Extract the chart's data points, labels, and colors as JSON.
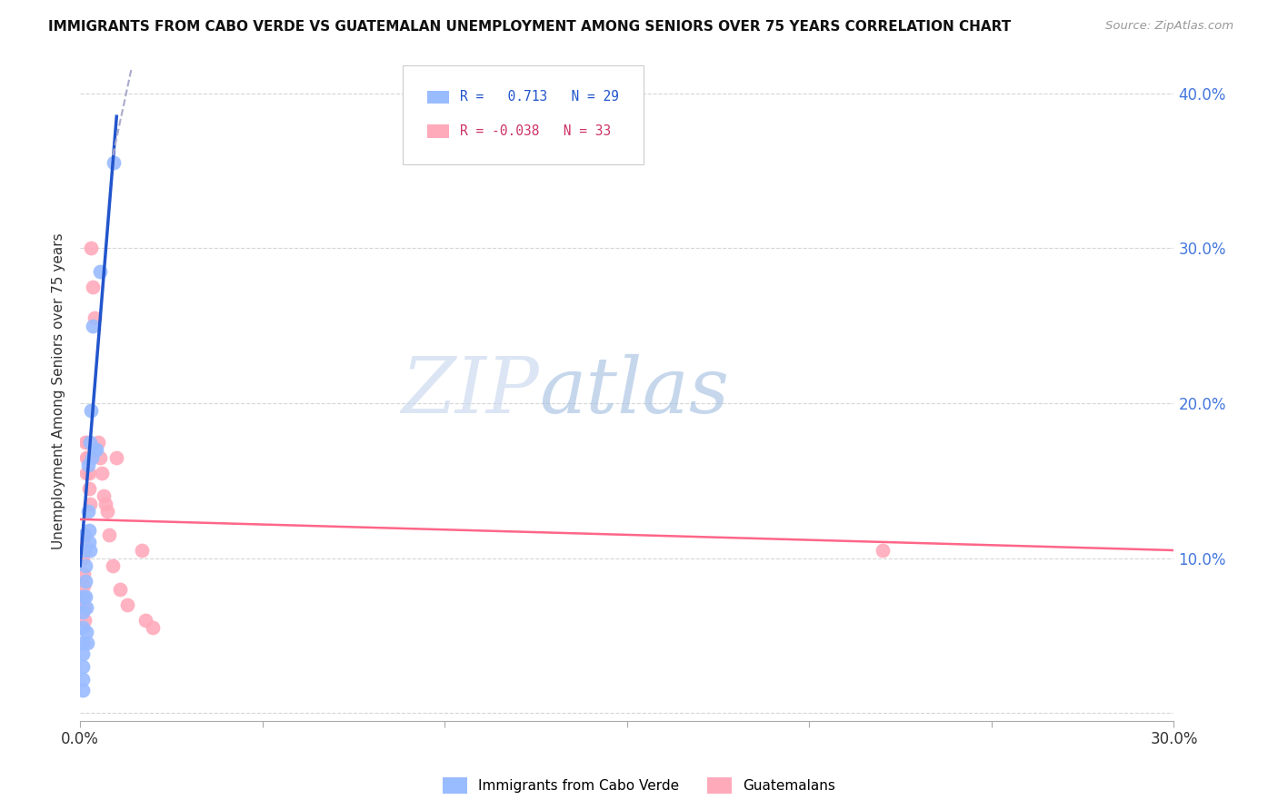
{
  "title": "IMMIGRANTS FROM CABO VERDE VS GUATEMALAN UNEMPLOYMENT AMONG SENIORS OVER 75 YEARS CORRELATION CHART",
  "source": "Source: ZipAtlas.com",
  "ylabel": "Unemployment Among Seniors over 75 years",
  "y_ticks": [
    0.0,
    0.1,
    0.2,
    0.3,
    0.4
  ],
  "y_tick_labels_right": [
    "",
    "10.0%",
    "20.0%",
    "30.0%",
    "40.0%"
  ],
  "x_ticks": [
    0.0,
    0.05,
    0.1,
    0.15,
    0.2,
    0.25,
    0.3
  ],
  "x_tick_labels": [
    "0.0%",
    "",
    "",
    "",
    "",
    "",
    "30.0%"
  ],
  "xlim": [
    0.0,
    0.3
  ],
  "ylim": [
    -0.005,
    0.42
  ],
  "cabo_verde_color": "#99bbff",
  "guatemalan_color": "#ffaabb",
  "cabo_verde_line_color": "#2255cc",
  "guatemalan_line_color": "#ff6688",
  "cabo_verde_points": [
    [
      0.0008,
      0.075
    ],
    [
      0.0008,
      0.065
    ],
    [
      0.0008,
      0.055
    ],
    [
      0.0008,
      0.045
    ],
    [
      0.0008,
      0.038
    ],
    [
      0.0008,
      0.03
    ],
    [
      0.0008,
      0.022
    ],
    [
      0.0008,
      0.015
    ],
    [
      0.0012,
      0.115
    ],
    [
      0.0013,
      0.105
    ],
    [
      0.0014,
      0.095
    ],
    [
      0.0014,
      0.085
    ],
    [
      0.0015,
      0.075
    ],
    [
      0.0016,
      0.068
    ],
    [
      0.0018,
      0.052
    ],
    [
      0.0019,
      0.045
    ],
    [
      0.0022,
      0.16
    ],
    [
      0.0023,
      0.13
    ],
    [
      0.0024,
      0.118
    ],
    [
      0.0025,
      0.11
    ],
    [
      0.0026,
      0.105
    ],
    [
      0.0028,
      0.175
    ],
    [
      0.003,
      0.195
    ],
    [
      0.0032,
      0.165
    ],
    [
      0.0035,
      0.25
    ],
    [
      0.004,
      0.17
    ],
    [
      0.0045,
      0.17
    ],
    [
      0.0055,
      0.285
    ],
    [
      0.0092,
      0.355
    ]
  ],
  "guatemalan_points": [
    [
      0.0007,
      0.11
    ],
    [
      0.0008,
      0.1
    ],
    [
      0.0009,
      0.09
    ],
    [
      0.001,
      0.082
    ],
    [
      0.001,
      0.075
    ],
    [
      0.0011,
      0.068
    ],
    [
      0.0012,
      0.06
    ],
    [
      0.0015,
      0.175
    ],
    [
      0.0016,
      0.165
    ],
    [
      0.0017,
      0.155
    ],
    [
      0.0022,
      0.175
    ],
    [
      0.0023,
      0.165
    ],
    [
      0.0024,
      0.155
    ],
    [
      0.0025,
      0.145
    ],
    [
      0.0026,
      0.135
    ],
    [
      0.003,
      0.3
    ],
    [
      0.0035,
      0.275
    ],
    [
      0.004,
      0.255
    ],
    [
      0.005,
      0.175
    ],
    [
      0.0055,
      0.165
    ],
    [
      0.006,
      0.155
    ],
    [
      0.0065,
      0.14
    ],
    [
      0.007,
      0.135
    ],
    [
      0.0075,
      0.13
    ],
    [
      0.008,
      0.115
    ],
    [
      0.009,
      0.095
    ],
    [
      0.01,
      0.165
    ],
    [
      0.011,
      0.08
    ],
    [
      0.013,
      0.07
    ],
    [
      0.017,
      0.105
    ],
    [
      0.018,
      0.06
    ],
    [
      0.02,
      0.055
    ],
    [
      0.22,
      0.105
    ]
  ],
  "cabo_verde_line": {
    "x0": 0.0,
    "x1": 0.01,
    "y0": 0.095,
    "y1": 0.385
  },
  "guatemalan_line": {
    "x0": 0.0,
    "x1": 0.3,
    "y0": 0.125,
    "y1": 0.105
  },
  "dashed_line": {
    "x0": 0.009,
    "x1": 0.014,
    "y0": 0.36,
    "y1": 0.415
  },
  "watermark_zip": "ZIP",
  "watermark_atlas": "atlas",
  "marker_size": 130
}
